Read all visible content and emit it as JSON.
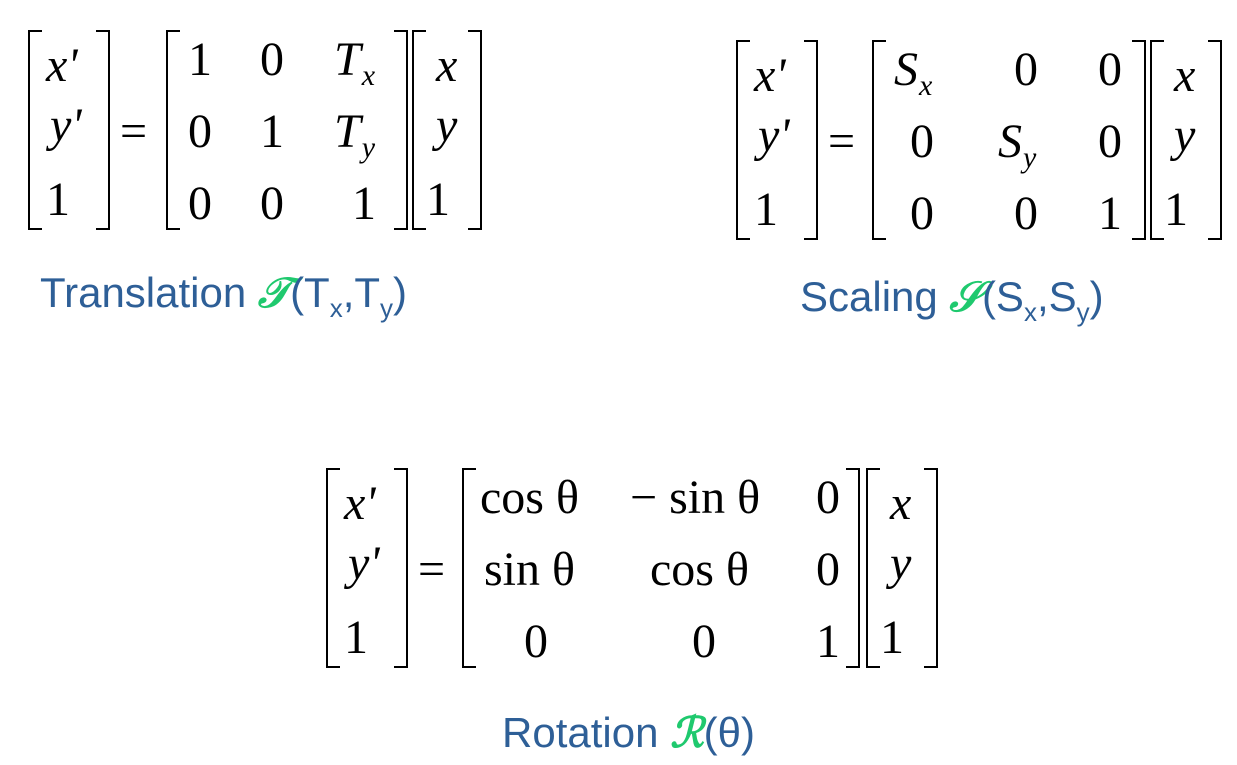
{
  "vec_prime": [
    "x'",
    "y'",
    "1"
  ],
  "vec": [
    "x",
    "y",
    "1"
  ],
  "equals": "=",
  "translation": {
    "matrix": [
      [
        "1",
        "0",
        "T",
        "x"
      ],
      [
        "0",
        "1",
        "T",
        "y"
      ],
      [
        "0",
        "0",
        "1"
      ]
    ],
    "caption": {
      "word": "Translation ",
      "symbol": "𝒯",
      "open": "(T",
      "sub1": "x",
      "mid": ",T",
      "sub2": "y",
      "close": ")"
    }
  },
  "scaling": {
    "matrix": [
      [
        "S",
        "x",
        "0",
        "0"
      ],
      [
        "0",
        "S",
        "y",
        "0"
      ],
      [
        "0",
        "0",
        "1"
      ]
    ],
    "caption": {
      "word": "Scaling ",
      "symbol": "𝒮",
      "open": "(S",
      "sub1": "x",
      "mid": ",S",
      "sub2": "y",
      "close": ")"
    }
  },
  "rotation": {
    "matrix": [
      [
        "cos θ",
        "− sin θ",
        "0"
      ],
      [
        "sin θ",
        "cos θ",
        "0"
      ],
      [
        "0",
        "0",
        "1"
      ]
    ],
    "caption": {
      "word": "Rotation ",
      "symbol": "ℛ",
      "rest": "(θ)"
    }
  },
  "colors": {
    "caption": "#2e5f97",
    "symbol": "#1fc96e"
  }
}
